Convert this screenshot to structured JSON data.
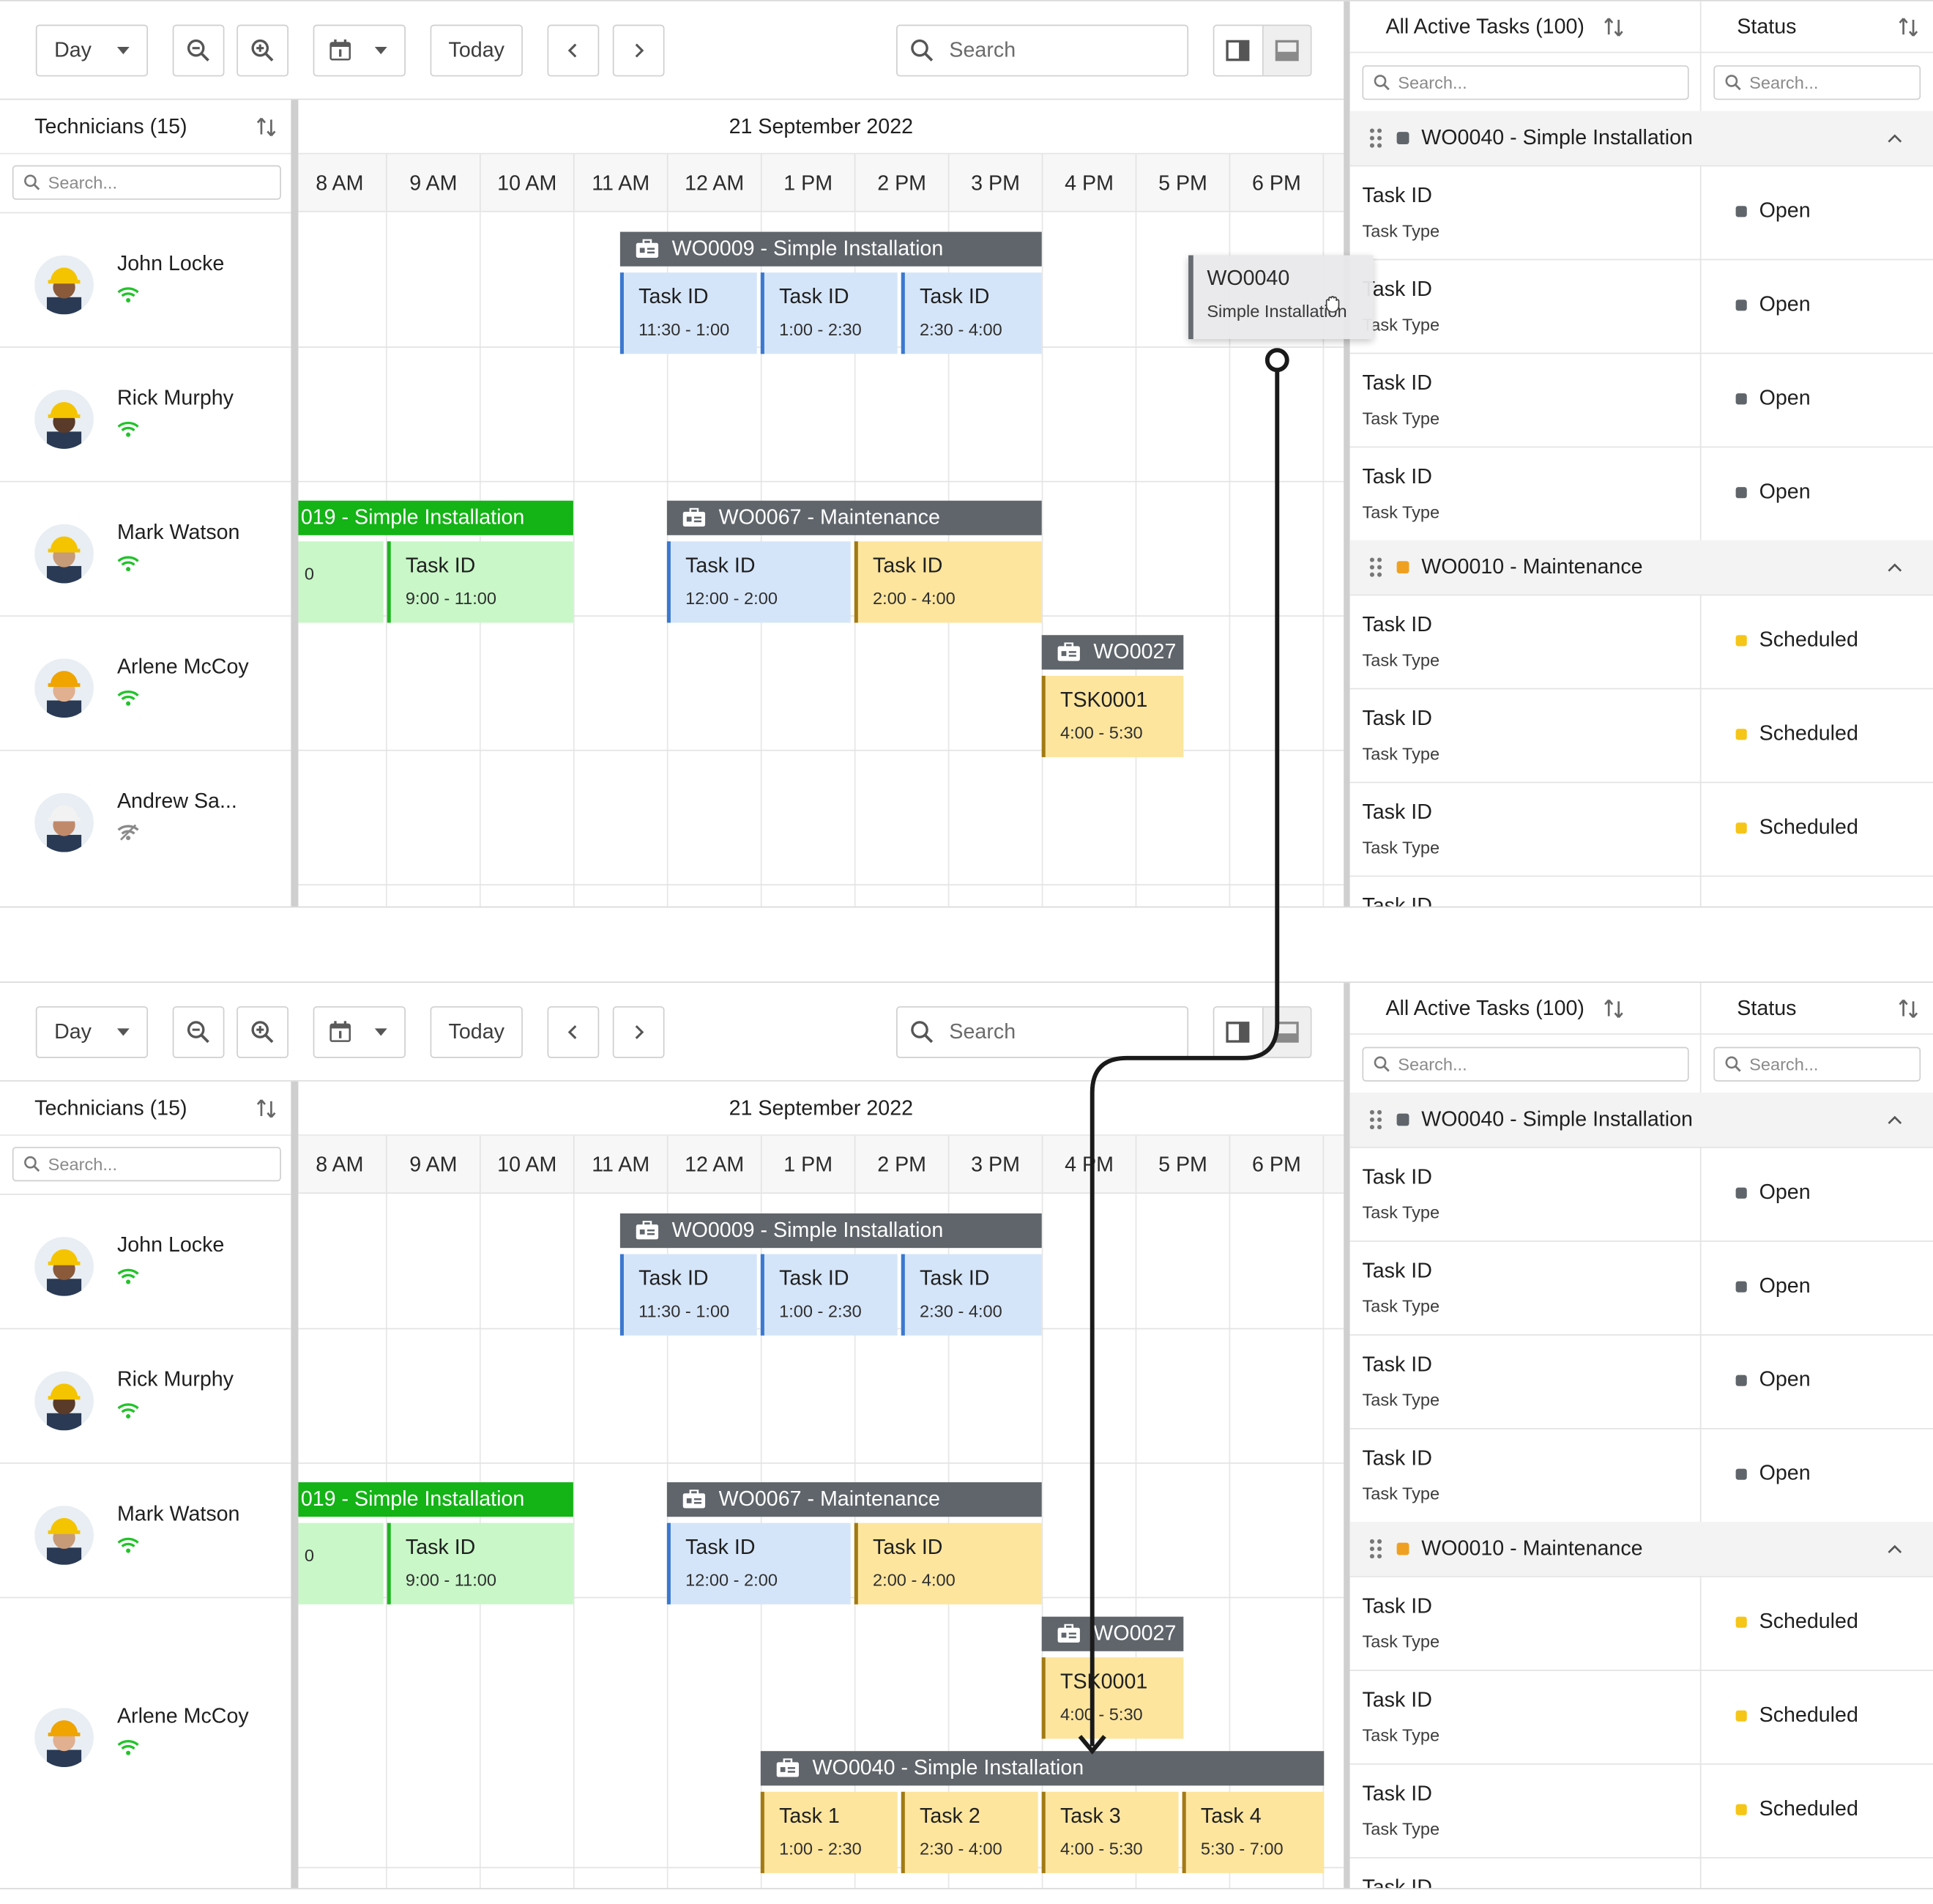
{
  "toolbar": {
    "view_label": "Day",
    "today_label": "Today",
    "search_placeholder": "Search"
  },
  "technicians": {
    "header": "Technicians (15)",
    "search_placeholder": "Search...",
    "items": [
      {
        "name": "John Locke",
        "online": true
      },
      {
        "name": "Rick Murphy",
        "online": true
      },
      {
        "name": "Mark Watson",
        "online": true
      },
      {
        "name": "Arlene McCoy",
        "online": true
      },
      {
        "name": "Andrew Sa...",
        "online": false
      }
    ]
  },
  "schedule": {
    "date": "21 September 2022",
    "hours": [
      "8 AM",
      "9 AM",
      "10 AM",
      "11 AM",
      "12 AM",
      "1 PM",
      "2 PM",
      "3 PM",
      "4 PM",
      "5 PM",
      "6 PM"
    ]
  },
  "workorders": {
    "wo0009": {
      "label": "WO0009 - Simple Installation",
      "tasks": [
        {
          "title": "Task ID",
          "time": "11:30 - 1:00"
        },
        {
          "title": "Task ID",
          "time": "1:00 - 2:30"
        },
        {
          "title": "Task ID",
          "time": "2:30 - 4:00"
        }
      ]
    },
    "wo0019": {
      "label": "019 - Simple Installation",
      "tasks": [
        {
          "title": "",
          "time": "0"
        },
        {
          "title": "Task ID",
          "time": "9:00 - 11:00"
        }
      ]
    },
    "wo0067": {
      "label": "WO0067 - Maintenance",
      "tasks": [
        {
          "title": "Task ID",
          "time": "12:00 - 2:00"
        },
        {
          "title": "Task ID",
          "time": "2:00 - 4:00"
        }
      ]
    },
    "wo0027": {
      "label": "WO0027",
      "tasks": [
        {
          "title": "TSK0001",
          "time": "4:00 - 5:30"
        }
      ]
    },
    "wo0040": {
      "label": "WO0040 - Simple Installation",
      "tasks": [
        {
          "title": "Task 1",
          "time": "1:00 - 2:30"
        },
        {
          "title": "Task 2",
          "time": "2:30 - 4:00"
        },
        {
          "title": "Task 3",
          "time": "4:00 - 5:30"
        },
        {
          "title": "Task 4",
          "time": "5:30 - 7:00"
        }
      ]
    }
  },
  "drag_ghost": {
    "title": "WO0040",
    "subtitle": "Simple Installation"
  },
  "tasks_panel": {
    "header": "All Active Tasks (100)",
    "status_header": "Status",
    "search_placeholder": "Search...",
    "groups": [
      {
        "label": "WO0040 - Simple Installation",
        "color": "#5f656b",
        "rows": [
          {
            "task": "Task ID",
            "type": "Task Type",
            "status": "Open"
          },
          {
            "task": "Task ID",
            "type": "Task Type",
            "status": "Open"
          },
          {
            "task": "Task ID",
            "type": "Task Type",
            "status": "Open"
          },
          {
            "task": "Task ID",
            "type": "Task Type",
            "status": "Open"
          }
        ]
      },
      {
        "label": "WO0010 - Maintenance",
        "color": "#f0a020",
        "rows": [
          {
            "task": "Task ID",
            "type": "Task Type",
            "status": "Scheduled"
          },
          {
            "task": "Task ID",
            "type": "Task Type",
            "status": "Scheduled"
          },
          {
            "task": "Task ID",
            "type": "Task Type",
            "status": "Scheduled"
          }
        ]
      }
    ],
    "partial_row": "Task ID"
  },
  "colors": {
    "open": "#5f656b",
    "scheduled": "#f5c518",
    "online": "#22c32a",
    "offline": "#8a8a8a",
    "wo_header": "#5f656b",
    "wo_green": "#14b316"
  }
}
